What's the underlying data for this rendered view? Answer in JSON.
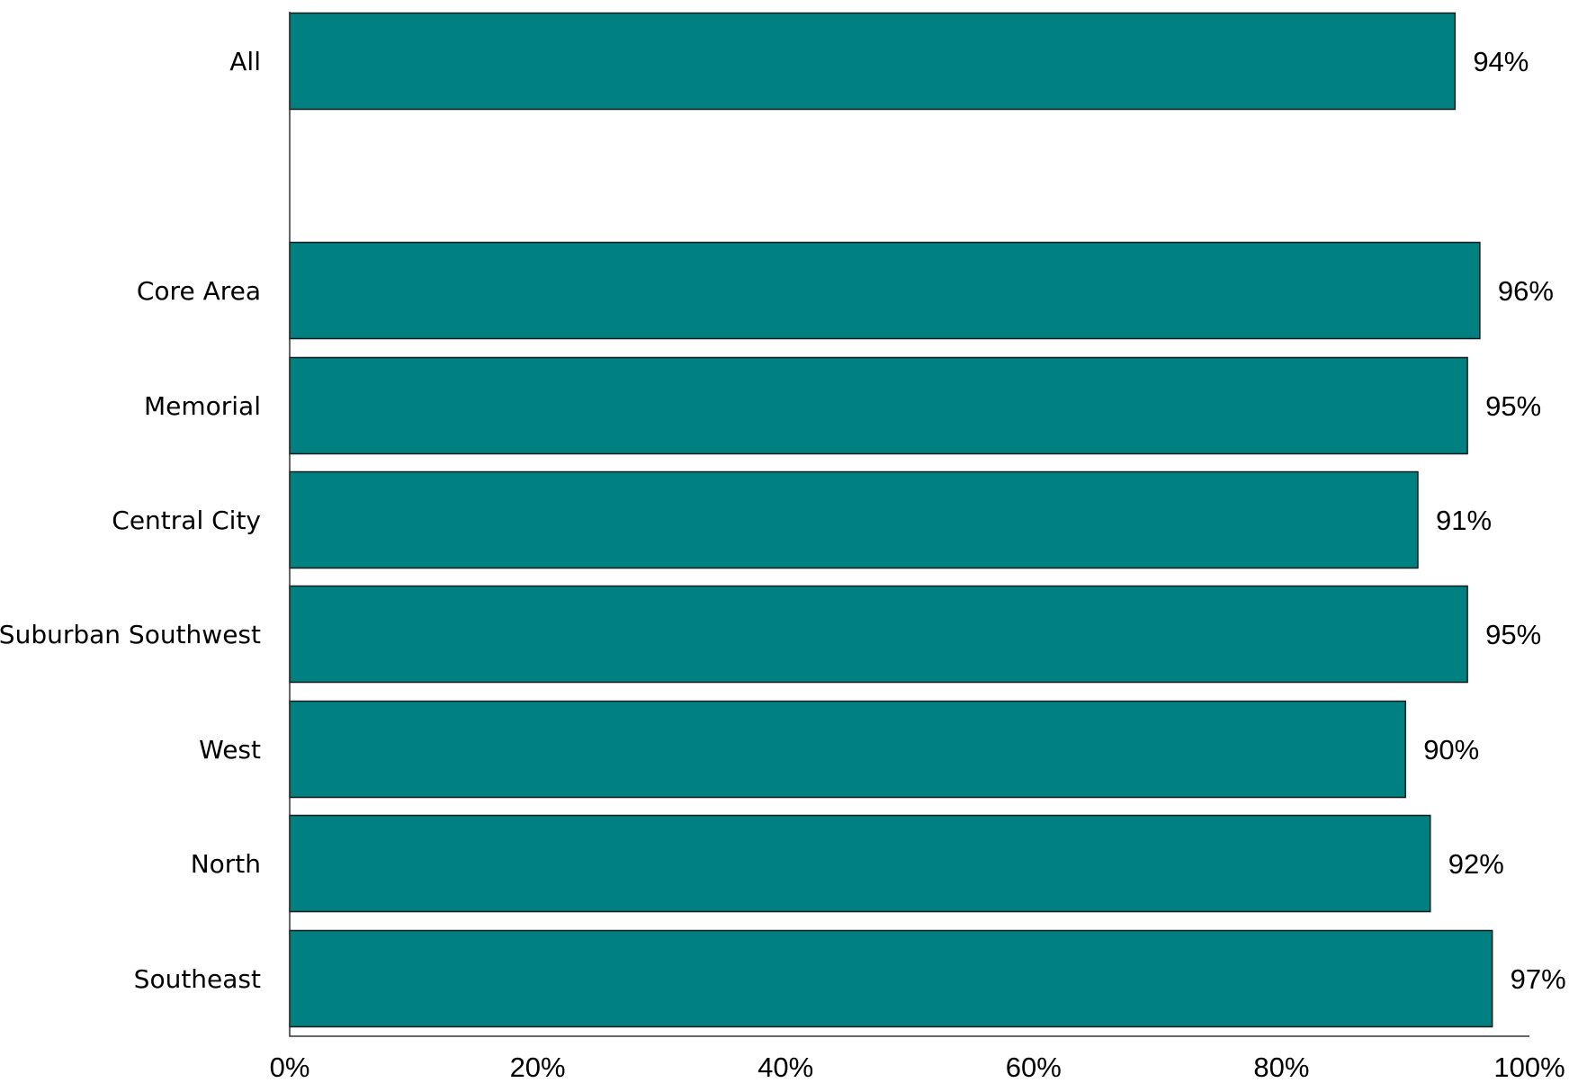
{
  "chart_data": {
    "type": "bar",
    "orientation": "horizontal",
    "categories": [
      "All",
      "Core Area",
      "Memorial",
      "Central City",
      "Suburban Southwest",
      "West",
      "North",
      "Southeast"
    ],
    "values": [
      94,
      96,
      95,
      91,
      95,
      90,
      92,
      97
    ],
    "value_labels": [
      "94%",
      "96%",
      "95%",
      "91%",
      "95%",
      "90%",
      "92%",
      "97%"
    ],
    "x_ticks": [
      "0%",
      "20%",
      "40%",
      "60%",
      "80%",
      "100%"
    ],
    "xlim": [
      0,
      100
    ],
    "title": "",
    "xlabel": "",
    "ylabel": "",
    "grid": false,
    "bar_color": "#008080"
  }
}
